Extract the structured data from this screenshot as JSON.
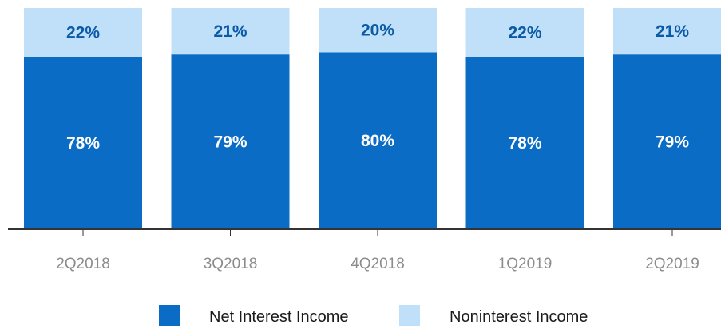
{
  "chart_data": {
    "type": "bar",
    "stacked": true,
    "categories": [
      "2Q2018",
      "3Q2018",
      "4Q2018",
      "1Q2019",
      "2Q2019"
    ],
    "series": [
      {
        "name": "Net Interest Income",
        "values": [
          78,
          79,
          80,
          78,
          79
        ],
        "labels": [
          "78%",
          "79%",
          "80%",
          "78%",
          "79%"
        ],
        "color": "#0a6cc4",
        "label_color": "#ffffff"
      },
      {
        "name": "Noninterest Income",
        "values": [
          22,
          21,
          20,
          22,
          21
        ],
        "labels": [
          "22%",
          "21%",
          "20%",
          "22%",
          "21%"
        ],
        "color": "#bfe0f8",
        "label_color": "#0a5aa8"
      }
    ],
    "ylim": [
      0,
      100
    ],
    "grid": false,
    "legend": "bottom",
    "axis_color": "#333333",
    "tick_label_color": "#8c8c8c"
  }
}
